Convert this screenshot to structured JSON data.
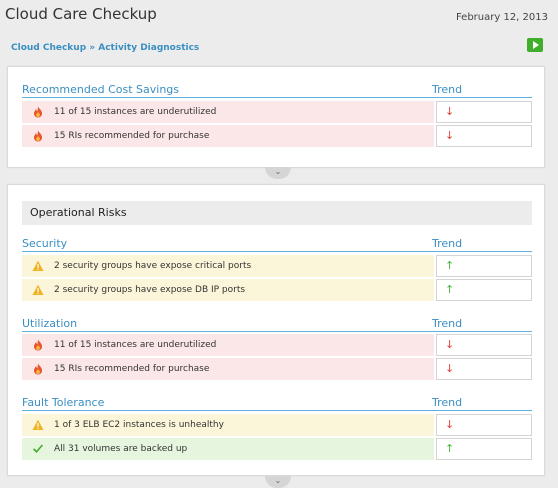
{
  "header": {
    "title": "Cloud Care Checkup",
    "date": "February 12, 2013",
    "breadcrumb": {
      "root": "Cloud Checkup",
      "separator": " » ",
      "current": "Activity Diagnostics"
    }
  },
  "colors": {
    "accent": "#3a8fc2",
    "red_row": "#fbe7e7",
    "yellow_row": "#fbf6d9",
    "green_row": "#e6f6de",
    "down_arrow": "#e0443a",
    "up_arrow": "#49b53a"
  },
  "cost_savings": {
    "title": "Recommended Cost Savings",
    "trend_label": "Trend",
    "rows": [
      {
        "icon": "fire-icon",
        "text": "11 of 15 instances are underutilized",
        "trend": "↓",
        "status": "red"
      },
      {
        "icon": "fire-icon",
        "text": "15 RIs recommended for purchase",
        "trend": "↓",
        "status": "red"
      }
    ]
  },
  "operational_risks": {
    "title": "Operational Risks",
    "sections": [
      {
        "title": "Security",
        "trend_label": "Trend",
        "rows": [
          {
            "icon": "warning-icon",
            "text": "2 security groups have expose critical ports",
            "trend": "↑",
            "status": "yellow"
          },
          {
            "icon": "warning-icon",
            "text": "2 security groups have expose DB IP ports",
            "trend": "↑",
            "status": "yellow"
          }
        ]
      },
      {
        "title": "Utilization",
        "trend_label": "Trend",
        "rows": [
          {
            "icon": "fire-icon",
            "text": "11 of 15 instances are underutilized",
            "trend": "↓",
            "status": "red"
          },
          {
            "icon": "fire-icon",
            "text": "15 RIs recommended for purchase",
            "trend": "↓",
            "status": "red"
          }
        ]
      },
      {
        "title": "Fault Tolerance",
        "trend_label": "Trend",
        "rows": [
          {
            "icon": "warning-icon",
            "text": "1 of 3 ELB EC2 instances is unhealthy",
            "trend": "↓",
            "status": "yellow"
          },
          {
            "icon": "check-icon",
            "text": "All 31 volumes are backed up",
            "trend": "↑",
            "status": "green"
          }
        ]
      }
    ]
  },
  "collapse_glyph": "⌄"
}
